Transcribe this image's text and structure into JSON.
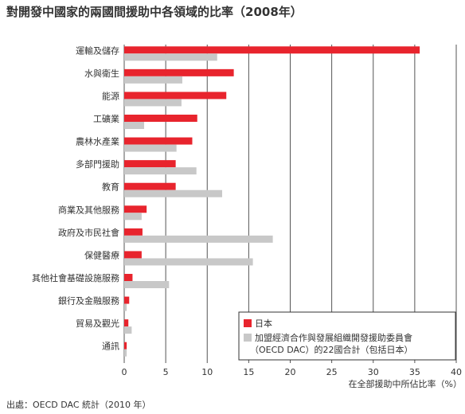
{
  "title": "對開發中國家的兩國間援助中各領域的比率（2008年）",
  "source": "出處：OECD DAC 統計（2010 年）",
  "chart_data": {
    "type": "bar",
    "orientation": "horizontal",
    "title": "對開發中國家的兩國間援助中各領域的比率（2008年）",
    "xlabel": "在全部援助中所佔比率（%）",
    "ylabel": "",
    "xlim": [
      0,
      40
    ],
    "xticks": [
      0,
      5,
      10,
      15,
      20,
      25,
      30,
      35,
      40
    ],
    "grid": "vertical",
    "legend_position": "bottom-right",
    "categories": [
      "運輸及儲存",
      "水與衛生",
      "能源",
      "工礦業",
      "農林水產業",
      "多部門援助",
      "教育",
      "商業及其他服務",
      "政府及市民社會",
      "保健醫療",
      "其他社會基礎設施服務",
      "銀行及金融服務",
      "貿易及觀光",
      "通訊"
    ],
    "series": [
      {
        "name": "日本",
        "color": "#e8242d",
        "values": [
          35.6,
          13.2,
          12.3,
          8.8,
          8.2,
          6.2,
          6.2,
          2.7,
          2.2,
          2.1,
          1.0,
          0.6,
          0.5,
          0.3
        ]
      },
      {
        "name": "加盟經濟合作與發展組織開發援助委員會（OECD DAC）的22國合計（包括日本）",
        "color": "#c8c8c8",
        "values": [
          11.2,
          7.0,
          6.9,
          2.4,
          6.3,
          8.7,
          11.8,
          2.1,
          17.9,
          15.5,
          5.4,
          0.3,
          0.9,
          0.3
        ]
      }
    ]
  },
  "legend": {
    "japan": "日本",
    "dac_line1": "加盟經濟合作與發展組織開發援助委員會",
    "dac_line2": "（OECD DAC）的22國合計（包括日本）"
  }
}
